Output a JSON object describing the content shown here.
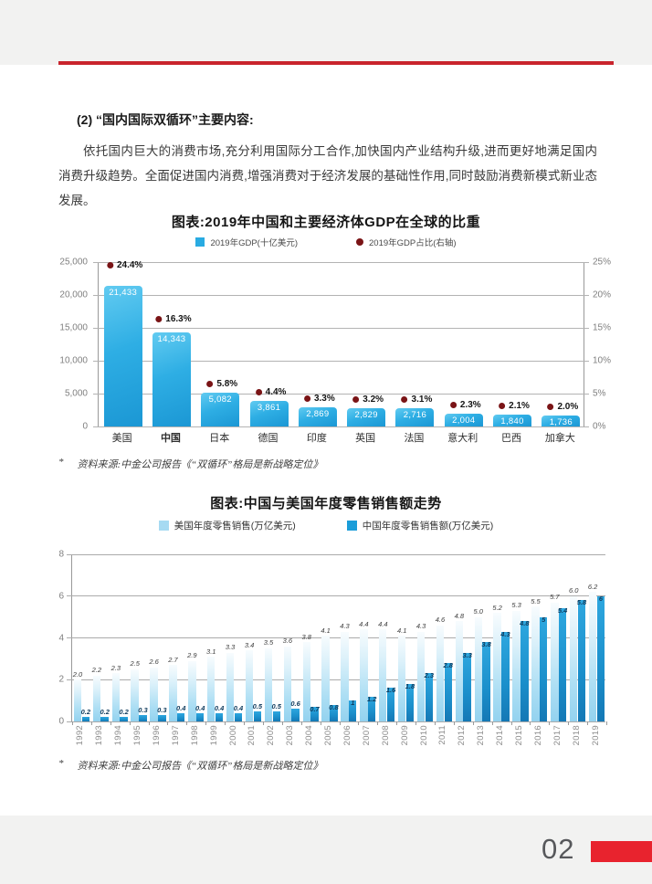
{
  "content": {
    "heading": "(2) “国内国际双循环”主要内容:",
    "paragraph": "依托国内巨大的消费市场,充分利用国际分工合作,加快国内产业结构升级,进而更好地满足国内消费升级趋势。全面促进国内消费,增强消费对于经济发展的基础性作用,同时鼓励消费新模式新业态发展。"
  },
  "source_note": {
    "bullet": "*",
    "text": "资料来源:中金公司报告《“双循环”格局是新战略定位》"
  },
  "footer": {
    "page_number": "02"
  },
  "colors": {
    "accent_red_rule": "#C9242D",
    "accent_red_block": "#E8232E",
    "gdp_bar_blue": "#29ABE2",
    "pct_dot_maroon": "#7A1416",
    "us_bar_light_blue": "#A6DAF2",
    "cn_bar_blue": "#1B9DD9",
    "page_background": "#FFFFFF",
    "margin_background": "#F2F2F1"
  },
  "chart_data": [
    {
      "type": "bar",
      "title": "图表:2019年中国和主要经济体GDP在全球的比重",
      "legend": [
        {
          "label": "2019年GDP(十亿美元)",
          "marker": "square",
          "color": "#29ABE2"
        },
        {
          "label": "2019年GDP占比(右轴)",
          "marker": "circle",
          "color": "#7A1416"
        }
      ],
      "categories": [
        "美国",
        "中国",
        "日本",
        "德国",
        "印度",
        "英国",
        "法国",
        "意大利",
        "巴西",
        "加拿大"
      ],
      "values": [
        21433,
        14343,
        5082,
        3861,
        2869,
        2829,
        2716,
        2004,
        1840,
        1736
      ],
      "value_labels": [
        "21,433",
        "14,343",
        "5,082",
        "3,861",
        "2,869",
        "2,829",
        "2,716",
        "2,004",
        "1,840",
        "1,736"
      ],
      "pct": [
        24.4,
        16.3,
        5.8,
        4.4,
        3.3,
        3.2,
        3.1,
        2.3,
        2.1,
        2.0
      ],
      "pct_labels": [
        "24.4%",
        "16.3%",
        "5.8%",
        "4.4%",
        "3.3%",
        "3.2%",
        "3.1%",
        "2.3%",
        "2.1%",
        "2.0%"
      ],
      "ylim": [
        0,
        25000
      ],
      "y2lim": [
        0,
        25
      ],
      "left_axis_ticks": [
        "25,000",
        "20,000",
        "15,000",
        "10,000",
        "5,000",
        "0"
      ],
      "right_axis_ticks": [
        "25%",
        "20%",
        "15%",
        "10%",
        "5%",
        "0%"
      ],
      "bold_category": "中国",
      "grid": true,
      "legend_position": "top",
      "xlabel": "",
      "ylabel": ""
    },
    {
      "type": "bar",
      "title": "图表:中国与美国年度零售销售额走势",
      "legend": [
        {
          "label": "美国年度零售销售(万亿美元)",
          "marker": "square",
          "color": "#A6DAF2"
        },
        {
          "label": "中国年度零售销售额(万亿美元)",
          "marker": "square",
          "color": "#1B9DD9"
        }
      ],
      "categories": [
        "1992",
        "1993",
        "1994",
        "1995",
        "1996",
        "1997",
        "1998",
        "1999",
        "2000",
        "2001",
        "2002",
        "2003",
        "2004",
        "2005",
        "2006",
        "2007",
        "2008",
        "2009",
        "2010",
        "2011",
        "2012",
        "2013",
        "2014",
        "2015",
        "2016",
        "2017",
        "2018",
        "2019"
      ],
      "series": [
        {
          "name": "美国年度零售销售(万亿美元)",
          "values": [
            2.0,
            2.2,
            2.3,
            2.5,
            2.6,
            2.7,
            2.9,
            3.1,
            3.3,
            3.4,
            3.5,
            3.6,
            3.8,
            4.1,
            4.3,
            4.4,
            4.4,
            4.1,
            4.3,
            4.6,
            4.8,
            5.0,
            5.2,
            5.3,
            5.5,
            5.7,
            6.0,
            6.2
          ],
          "labels": [
            "2.0",
            "2.2",
            "2.3",
            "2.5",
            "2.6",
            "2.7",
            "2.9",
            "3.1",
            "3.3",
            "3.4",
            "3.5",
            "3.6",
            "3.8",
            "4.1",
            "4.3",
            "4.4",
            "4.4",
            "4.1",
            "4.3",
            "4.6",
            "4.8",
            "5.0",
            "5.2",
            "5.3",
            "5.5",
            "5.7",
            "6.0",
            "6.2"
          ]
        },
        {
          "name": "中国年度零售销售额(万亿美元)",
          "values": [
            0.2,
            0.2,
            0.2,
            0.3,
            0.3,
            0.4,
            0.4,
            0.4,
            0.4,
            0.5,
            0.5,
            0.6,
            0.7,
            0.8,
            1,
            1.2,
            1.6,
            1.8,
            2.3,
            2.8,
            3.3,
            3.8,
            4.3,
            4.8,
            5,
            5.4,
            5.8,
            6
          ],
          "labels": [
            "0.2",
            "0.2",
            "0.2",
            "0.3",
            "0.3",
            "0.4",
            "0.4",
            "0.4",
            "0.4",
            "0.5",
            "0.5",
            "0.6",
            "0.7",
            "0.8",
            "1",
            "1.2",
            "1.6",
            "1.8",
            "2.3",
            "2.8",
            "3.3",
            "3.8",
            "4.3",
            "4.8",
            "5",
            "5.4",
            "5.8",
            "6"
          ]
        }
      ],
      "ylim": [
        0,
        8
      ],
      "left_axis_ticks": [
        "8",
        "6",
        "4",
        "2",
        "0"
      ],
      "grid": true,
      "legend_position": "top",
      "xlabel": "",
      "ylabel": ""
    }
  ]
}
